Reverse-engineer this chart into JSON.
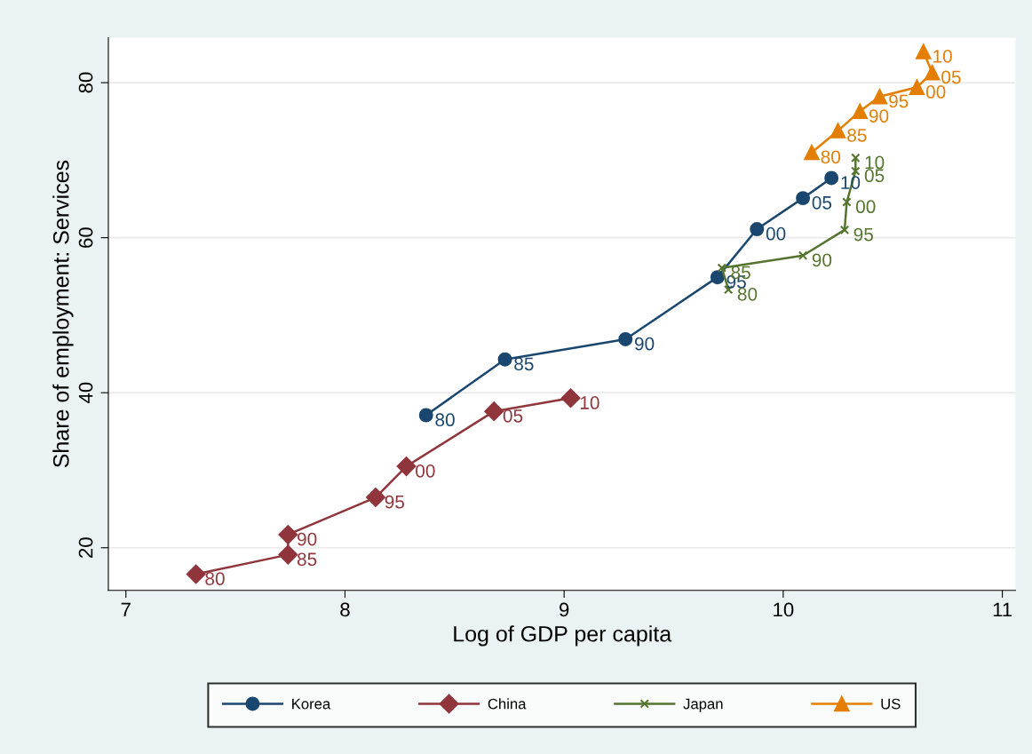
{
  "chart_data": {
    "type": "line",
    "xlabel": "Log of GDP per capita",
    "ylabel": "Share of employment: Services",
    "xlim": [
      6.92,
      11.06
    ],
    "ylim": [
      14.5,
      85.8
    ],
    "xticks": [
      7,
      8,
      9,
      10,
      11
    ],
    "yticks": [
      20,
      40,
      60,
      80
    ],
    "grid": "y",
    "legend": "bottom",
    "series": [
      {
        "name": "Korea",
        "color": "#1a476f",
        "marker": "circle",
        "x": [
          8.37,
          8.73,
          9.28,
          9.7,
          9.88,
          10.09,
          10.22
        ],
        "values": [
          37.1,
          44.3,
          46.9,
          54.9,
          61.1,
          65.1,
          67.7
        ]
      },
      {
        "name": "China",
        "color": "#90353b",
        "marker": "diamond",
        "x": [
          7.32,
          7.74,
          7.74,
          8.14,
          8.28,
          8.68,
          9.03
        ],
        "values": [
          16.6,
          19.1,
          21.7,
          26.5,
          30.5,
          37.6,
          39.3
        ]
      },
      {
        "name": "Japan",
        "color": "#55752f",
        "marker": "cross",
        "x": [
          9.75,
          9.72,
          10.09,
          10.28,
          10.29,
          10.33,
          10.33
        ],
        "values": [
          53.3,
          56.1,
          57.7,
          61.0,
          64.6,
          68.6,
          70.3
        ]
      },
      {
        "name": "US",
        "color": "#e37e00",
        "marker": "triangle",
        "x": [
          10.13,
          10.25,
          10.35,
          10.44,
          10.61,
          10.68,
          10.64
        ],
        "values": [
          71.0,
          73.8,
          76.3,
          78.2,
          79.4,
          81.3,
          84.0
        ]
      }
    ],
    "annotations": [
      {
        "text": "80",
        "x": 8.37,
        "y": 37.1
      },
      {
        "text": "85",
        "x": 8.73,
        "y": 44.3
      },
      {
        "text": "90",
        "x": 9.28,
        "y": 46.9
      },
      {
        "text": "95",
        "x": 9.7,
        "y": 54.9
      },
      {
        "text": "00",
        "x": 9.88,
        "y": 61.1
      },
      {
        "text": "05",
        "x": 10.09,
        "y": 65.1
      },
      {
        "text": "10",
        "x": 10.22,
        "y": 67.7
      },
      {
        "text": "80",
        "x": 7.32,
        "y": 16.6
      },
      {
        "text": "85",
        "x": 7.74,
        "y": 19.1
      },
      {
        "text": "90",
        "x": 7.74,
        "y": 21.7
      },
      {
        "text": "95",
        "x": 8.14,
        "y": 26.5
      },
      {
        "text": "00",
        "x": 8.28,
        "y": 30.5
      },
      {
        "text": "05",
        "x": 8.68,
        "y": 37.6
      },
      {
        "text": "10",
        "x": 9.03,
        "y": 39.3
      },
      {
        "text": "80",
        "x": 9.75,
        "y": 53.3
      },
      {
        "text": "85",
        "x": 9.72,
        "y": 56.1
      },
      {
        "text": "90",
        "x": 10.09,
        "y": 57.7
      },
      {
        "text": "95",
        "x": 10.28,
        "y": 61.0
      },
      {
        "text": "00",
        "x": 10.29,
        "y": 64.6
      },
      {
        "text": "05",
        "x": 10.33,
        "y": 68.6
      },
      {
        "text": "10",
        "x": 10.33,
        "y": 70.3
      },
      {
        "text": "80",
        "x": 10.13,
        "y": 71.0
      },
      {
        "text": "85",
        "x": 10.25,
        "y": 73.8
      },
      {
        "text": "90",
        "x": 10.35,
        "y": 76.3
      },
      {
        "text": "95",
        "x": 10.44,
        "y": 78.2
      },
      {
        "text": "00",
        "x": 10.61,
        "y": 79.4
      },
      {
        "text": "05",
        "x": 10.68,
        "y": 81.3
      },
      {
        "text": "10",
        "x": 10.64,
        "y": 84.0
      }
    ]
  }
}
